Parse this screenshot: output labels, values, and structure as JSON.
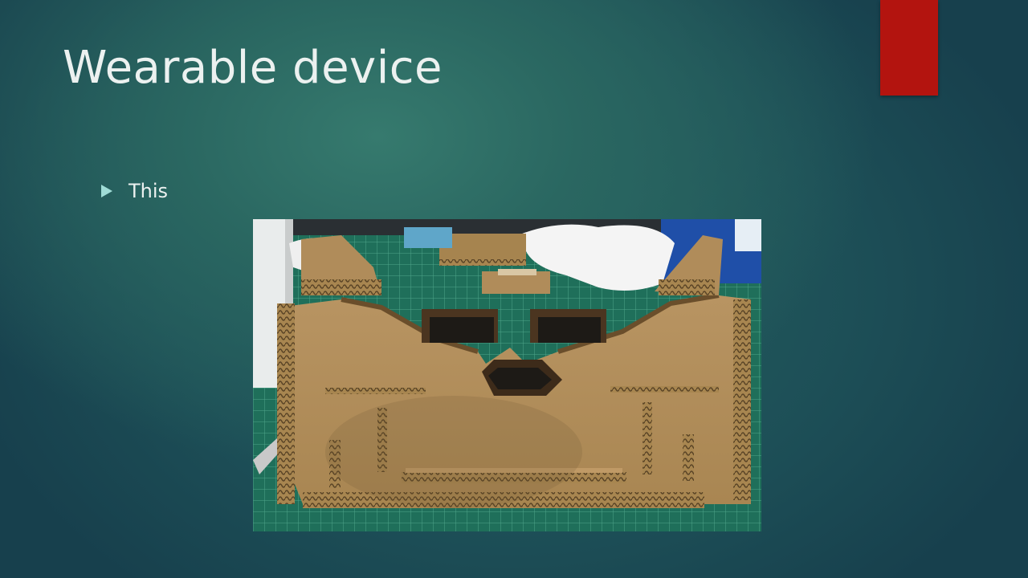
{
  "slide": {
    "title": "Wearable device",
    "bullets": [
      {
        "text": "This"
      }
    ],
    "image": {
      "subject": "cardboard-headset-prototype"
    }
  },
  "colors": {
    "background_dark": "#17404d",
    "background_light": "#367a6e",
    "accent": "#b3140f",
    "bullet": "#9fdcd6",
    "text": "#ecf1f0"
  },
  "icons": {
    "bullet": "triangle-right-icon"
  }
}
